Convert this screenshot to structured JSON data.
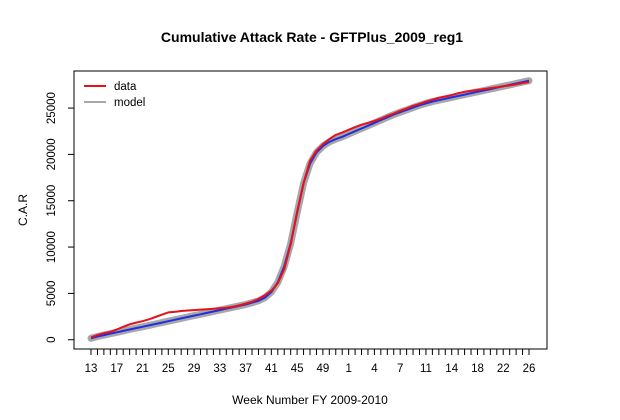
{
  "chart_data": {
    "type": "line",
    "title": "Cumulative Attack Rate - GFTPlus_2009_reg1",
    "xlabel": "Week Number FY 2009-2010",
    "ylabel": "C.A.R",
    "x_tick_labels": [
      "13",
      "17",
      "21",
      "25",
      "29",
      "33",
      "37",
      "41",
      "45",
      "49",
      "1",
      "4",
      "7",
      "11",
      "14",
      "18",
      "22",
      "26"
    ],
    "y_ticks": [
      0,
      5000,
      10000,
      15000,
      20000,
      25000
    ],
    "ylim": [
      -1000,
      29000
    ],
    "legend": {
      "placement": "top-left",
      "entries": [
        "data",
        "model"
      ]
    },
    "grid": false,
    "colors": {
      "data": "#e8101a",
      "model": "#a8a8a8",
      "fit": "#1f2fe0"
    },
    "series": [
      {
        "name": "data",
        "values": [
          250,
          500,
          700,
          850,
          1100,
          1400,
          1650,
          1850,
          2000,
          2200,
          2450,
          2700,
          2950,
          3000,
          3100,
          3150,
          3200,
          3250,
          3300,
          3350,
          3400,
          3450,
          3550,
          3700,
          3900,
          4100,
          4400,
          4800,
          5300,
          6100,
          7600,
          10300,
          13800,
          16900,
          19300,
          20400,
          21100,
          21650,
          22100,
          22350,
          22650,
          22950,
          23200,
          23400,
          23600,
          23850,
          24150,
          24400,
          24700,
          24950,
          25250,
          25450,
          25700,
          25900,
          26100,
          26250,
          26400,
          26600,
          26750,
          26850,
          26950,
          27050,
          27150,
          27250,
          27350,
          27450,
          27550,
          27700,
          27800
        ]
      },
      {
        "name": "model",
        "values": [
          150,
          350,
          500,
          650,
          800,
          950,
          1100,
          1250,
          1400,
          1550,
          1700,
          1850,
          2000,
          2150,
          2300,
          2450,
          2600,
          2750,
          2900,
          3050,
          3200,
          3350,
          3500,
          3650,
          3800,
          4000,
          4200,
          4550,
          5150,
          6200,
          7900,
          10400,
          13700,
          16900,
          19000,
          20200,
          20900,
          21350,
          21650,
          21900,
          22200,
          22500,
          22800,
          23100,
          23400,
          23700,
          24000,
          24300,
          24550,
          24800,
          25050,
          25300,
          25500,
          25700,
          25850,
          26000,
          26150,
          26300,
          26450,
          26600,
          26750,
          26900,
          27050,
          27200,
          27350,
          27500,
          27650,
          27800,
          27950
        ]
      }
    ]
  }
}
